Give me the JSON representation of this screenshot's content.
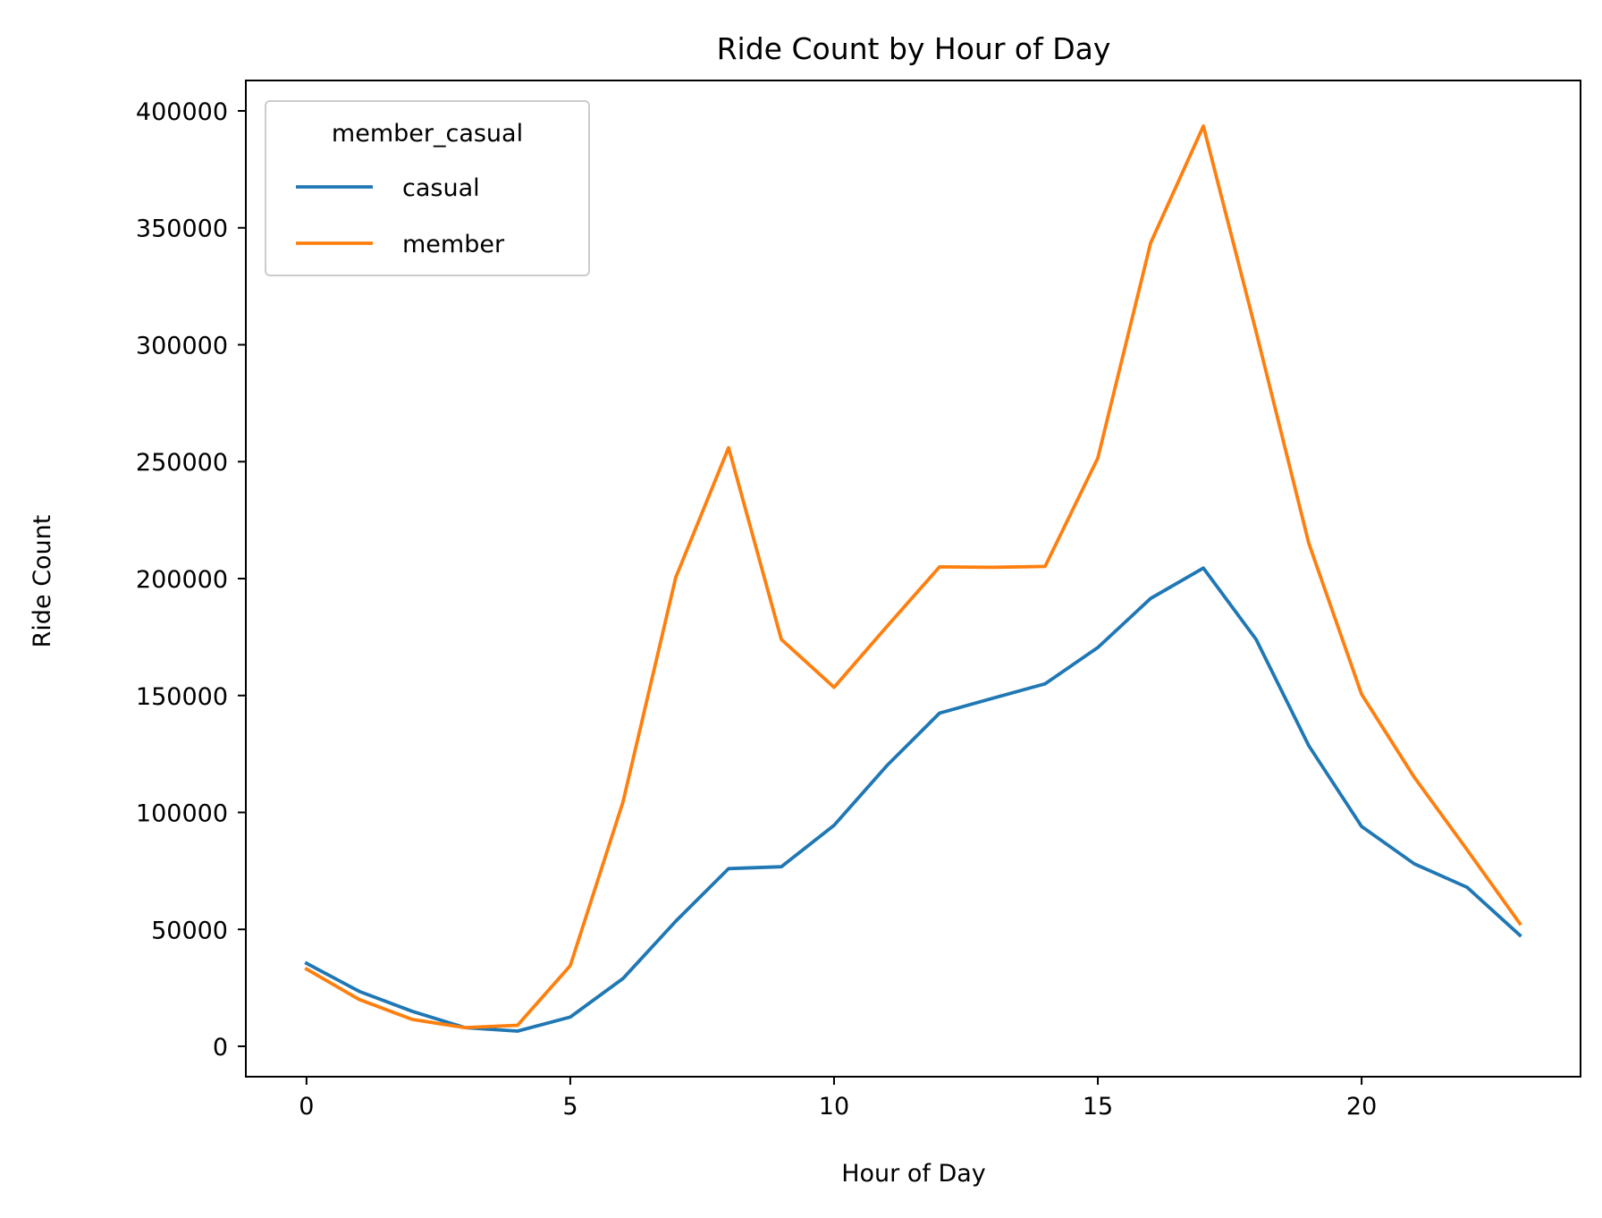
{
  "chart_data": {
    "type": "line",
    "title": "Ride Count by Hour of Day",
    "xlabel": "Hour of Day",
    "ylabel": "Ride Count",
    "xlim": [
      -1.15,
      24.15
    ],
    "ylim": [
      -13000,
      413000
    ],
    "xticks": [
      0,
      5,
      10,
      15,
      20
    ],
    "xtick_labels": [
      "0",
      "5",
      "10",
      "15",
      "20"
    ],
    "yticks": [
      0,
      50000,
      100000,
      150000,
      200000,
      250000,
      300000,
      350000,
      400000
    ],
    "ytick_labels": [
      "0",
      "50000",
      "100000",
      "150000",
      "200000",
      "250000",
      "300000",
      "350000",
      "400000"
    ],
    "grid": false,
    "legend": {
      "title": "member_casual",
      "placement": "top-left"
    },
    "x": [
      0,
      1,
      2,
      3,
      4,
      5,
      6,
      7,
      8,
      9,
      10,
      11,
      12,
      13,
      14,
      15,
      16,
      17,
      18,
      19,
      20,
      21,
      22,
      23
    ],
    "series": [
      {
        "name": "casual",
        "color": "#1f77b4",
        "values": [
          35500,
          23500,
          15000,
          8000,
          6500,
          12500,
          29000,
          53500,
          76000,
          76800,
          94500,
          120000,
          142500,
          148800,
          155000,
          170500,
          191500,
          204500,
          174000,
          128500,
          94000,
          78000,
          68000,
          47500
        ]
      },
      {
        "name": "member",
        "color": "#ff7f0e",
        "values": [
          33000,
          20000,
          11500,
          8000,
          9000,
          34500,
          104500,
          200500,
          256000,
          174000,
          153500,
          179500,
          205000,
          204800,
          205200,
          251500,
          343500,
          393500,
          305500,
          215000,
          150500,
          115000,
          84000,
          52500
        ]
      }
    ]
  }
}
